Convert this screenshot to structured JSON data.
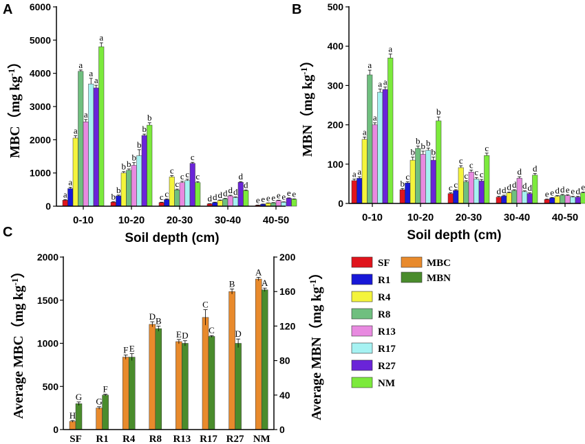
{
  "colors": {
    "SF": "#e0141c",
    "R1": "#1818d8",
    "R4": "#f4f43c",
    "R8": "#6fbf7f",
    "R13": "#e88ae0",
    "R17": "#a6f2f2",
    "R27": "#6a24d8",
    "NM": "#7cea3c",
    "MBC": "#e88a2c",
    "MBN": "#4a8c2c"
  },
  "legend": {
    "treatments": [
      "SF",
      "R1",
      "R4",
      "R8",
      "R13",
      "R17",
      "R27",
      "NM"
    ],
    "measures": [
      "MBC",
      "MBN"
    ]
  },
  "chart_data": [
    {
      "panel": "A",
      "type": "bar",
      "ylabel": "MBC (mg kg-1)",
      "xlabel": "Soil depth (cm)",
      "ylim": [
        0,
        6000
      ],
      "yticks": [
        0,
        1000,
        2000,
        3000,
        4000,
        5000,
        6000
      ],
      "categories": [
        "0-10",
        "10-20",
        "20-30",
        "30-40",
        "40-50"
      ],
      "series": [
        {
          "name": "SF",
          "values": [
            180,
            120,
            110,
            70,
            30
          ],
          "errors": [
            20,
            15,
            10,
            8,
            5
          ],
          "letters": [
            "a",
            "b",
            "c",
            "d",
            "e"
          ]
        },
        {
          "name": "R1",
          "values": [
            530,
            310,
            200,
            110,
            60
          ],
          "errors": [
            40,
            25,
            20,
            10,
            5
          ],
          "letters": [
            "a",
            "b",
            "c",
            "d",
            "e"
          ]
        },
        {
          "name": "R4",
          "values": [
            2050,
            1000,
            880,
            170,
            90
          ],
          "errors": [
            70,
            40,
            40,
            15,
            8
          ],
          "letters": [
            "a",
            "b",
            "c",
            "d",
            "e"
          ]
        },
        {
          "name": "R8",
          "values": [
            4060,
            1080,
            490,
            220,
            100
          ],
          "errors": [
            40,
            40,
            25,
            15,
            8
          ],
          "letters": [
            "a",
            "b",
            "c",
            "d",
            "e"
          ]
        },
        {
          "name": "R13",
          "values": [
            2540,
            1230,
            710,
            310,
            170
          ],
          "errors": [
            70,
            80,
            40,
            20,
            10
          ],
          "letters": [
            "a",
            "b",
            "c",
            "d",
            "e"
          ]
        },
        {
          "name": "R17",
          "values": [
            3680,
            1520,
            770,
            260,
            120
          ],
          "errors": [
            170,
            180,
            40,
            20,
            10
          ],
          "letters": [
            "a",
            "b",
            "c",
            "d",
            "e"
          ]
        },
        {
          "name": "R27",
          "values": [
            3560,
            2130,
            1290,
            720,
            240
          ],
          "errors": [
            80,
            40,
            30,
            20,
            10
          ],
          "letters": [
            "a",
            "b",
            "c",
            "d",
            "e"
          ]
        },
        {
          "name": "NM",
          "values": [
            4800,
            2440,
            710,
            470,
            210
          ],
          "errors": [
            120,
            70,
            30,
            20,
            10
          ],
          "letters": [
            "a",
            "b",
            "c",
            "d",
            "e"
          ]
        }
      ]
    },
    {
      "panel": "B",
      "type": "bar",
      "ylabel": "MBN (mg kg-1)",
      "xlabel": "Soil depth (cm)",
      "ylim": [
        0,
        500
      ],
      "yticks": [
        0,
        100,
        200,
        300,
        400,
        500
      ],
      "categories": [
        "0-10",
        "10-20",
        "20-30",
        "30-40",
        "40-50"
      ],
      "series": [
        {
          "name": "SF",
          "values": [
            58,
            35,
            25,
            16,
            10
          ],
          "errors": [
            4,
            3,
            2,
            2,
            1
          ],
          "letters": [
            "a",
            "b",
            "c",
            "d",
            "e"
          ]
        },
        {
          "name": "R1",
          "values": [
            64,
            52,
            33,
            19,
            14
          ],
          "errors": [
            4,
            3,
            2,
            2,
            1
          ],
          "letters": [
            "a",
            "c",
            "c",
            "d",
            "e"
          ]
        },
        {
          "name": "R4",
          "values": [
            163,
            110,
            91,
            27,
            18
          ],
          "errors": [
            6,
            8,
            5,
            2,
            2
          ],
          "letters": [
            "a",
            "b",
            "c",
            "d",
            "d"
          ]
        },
        {
          "name": "R8",
          "values": [
            327,
            140,
            55,
            33,
            21
          ],
          "errors": [
            12,
            6,
            3,
            2,
            2
          ],
          "letters": [
            "a",
            "b",
            "c",
            "d",
            "d"
          ]
        },
        {
          "name": "R13",
          "values": [
            200,
            125,
            80,
            64,
            20
          ],
          "errors": [
            5,
            8,
            5,
            4,
            2
          ],
          "letters": [
            "a",
            "b",
            "c",
            "d",
            "e"
          ]
        },
        {
          "name": "R17",
          "values": [
            283,
            135,
            62,
            30,
            16
          ],
          "errors": [
            8,
            6,
            4,
            2,
            2
          ],
          "letters": [
            "a",
            "b",
            "c",
            "d",
            "e"
          ]
        },
        {
          "name": "R27",
          "values": [
            290,
            110,
            57,
            25,
            16
          ],
          "errors": [
            6,
            8,
            4,
            2,
            2
          ],
          "letters": [
            "a",
            "b",
            "c",
            "d",
            "d"
          ]
        },
        {
          "name": "NM",
          "values": [
            370,
            210,
            122,
            72,
            27
          ],
          "errors": [
            10,
            10,
            6,
            4,
            2
          ],
          "letters": [
            "a",
            "b",
            "c",
            "d",
            "e"
          ]
        }
      ]
    },
    {
      "panel": "C",
      "type": "bar",
      "ylabel_left": "Average MBC (mg kg-1)",
      "ylabel_right": "Average MBN (mg kg-1)",
      "ylim_left": [
        0,
        2000
      ],
      "ylim_right": [
        0,
        200
      ],
      "yticks_left": [
        0,
        500,
        1000,
        1500,
        2000
      ],
      "yticks_right": [
        0,
        40,
        80,
        120,
        160,
        200
      ],
      "categories": [
        "SF",
        "R1",
        "R4",
        "R8",
        "R13",
        "R17",
        "R27",
        "NM"
      ],
      "series": [
        {
          "name": "MBC",
          "axis": "left",
          "values": [
            95,
            250,
            840,
            1220,
            1020,
            1300,
            1600,
            1745
          ],
          "errors": [
            10,
            15,
            25,
            30,
            25,
            90,
            30,
            20
          ],
          "letters": [
            "H",
            "G",
            "F",
            "D",
            "E",
            "C",
            "B",
            "A"
          ]
        },
        {
          "name": "MBN",
          "axis": "right",
          "values": [
            30,
            40,
            84,
            117,
            100,
            108,
            100,
            162
          ],
          "errors": [
            2,
            1,
            4,
            3,
            3,
            1,
            5,
            2
          ],
          "letters": [
            "G",
            "F",
            "E",
            "B",
            "D",
            "C",
            "D",
            "A"
          ]
        }
      ]
    }
  ]
}
